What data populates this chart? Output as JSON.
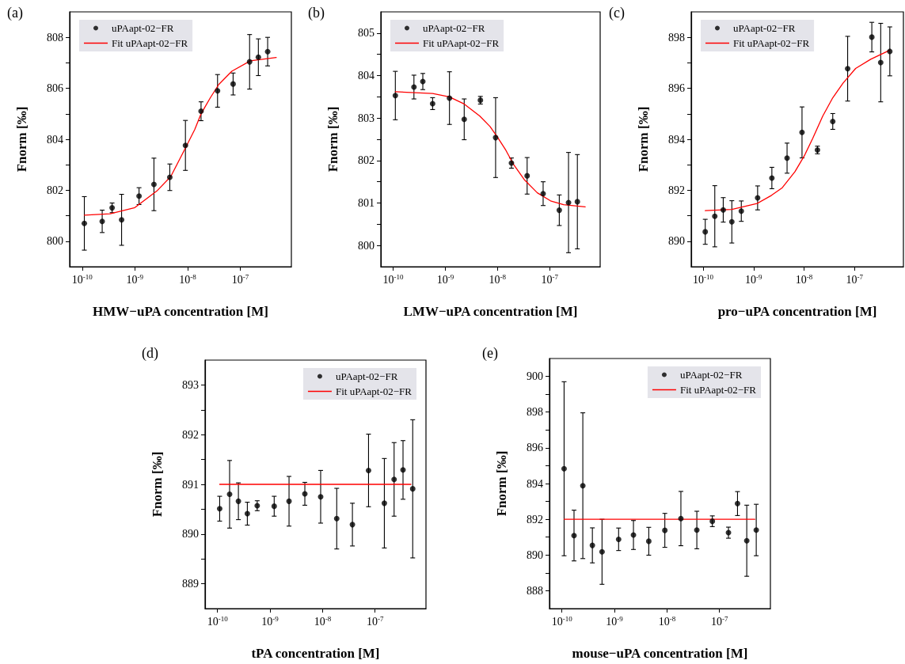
{
  "chart_data": [
    {
      "type": "scatter",
      "title": "(a)",
      "xlabel": "HMW−uPA concentration [M]",
      "ylabel": "Fnorm [‰]",
      "log": "x",
      "marker": "circle",
      "legend": "top left",
      "xlim": [
        5.8e-11,
        9.3e-07
      ],
      "xticks": [
        {
          "value": 1e-10,
          "label": "10$^{-10}$"
        },
        {
          "value": 1e-09,
          "label": "10$^{-9}$"
        },
        {
          "value": 1e-08,
          "label": "10$^{-8}$"
        },
        {
          "value": 1e-07,
          "label": "10$^{-7}$"
        }
      ],
      "ylim": [
        799,
        809
      ],
      "yticks": [
        800,
        {
          "value": 801,
          "label": null
        },
        802,
        {
          "value": 803,
          "label": null
        },
        804,
        {
          "value": 805,
          "label": null
        },
        806,
        {
          "value": 807,
          "label": null
        },
        808
      ],
      "series": [
        {
          "name": "uPAapt-02−FR",
          "color": "#000000",
          "x": [
            1.1e-10,
            2.4e-10,
            3.7e-10,
            5.6e-10,
            1.2e-09,
            2.3e-09,
            4.6e-09,
            9.1e-09,
            1.8e-08,
            3.7e-08,
            7.3e-08,
            1.5e-07,
            2.2e-07,
            3.3e-07
          ],
          "values": [
            800.7,
            800.78,
            801.31,
            800.84,
            801.77,
            802.23,
            802.51,
            803.76,
            805.1,
            805.9,
            806.17,
            807.04,
            807.22,
            807.44
          ],
          "errors": [
            1.05,
            0.44,
            0.19,
            1.0,
            0.33,
            1.03,
            0.52,
            0.98,
            0.37,
            0.64,
            0.43,
            1.07,
            0.72,
            0.56
          ]
        },
        {
          "name": "Fit uPAapt-02−FR",
          "type": "line",
          "marker": "none",
          "color": "#ff0000",
          "x": [
            1.1e-10,
            3.4e-10,
            1e-09,
            2.7e-09,
            4.8e-09,
            9.1e-09,
            1.37e-08,
            1.8e-08,
            2.7e-08,
            3.9e-08,
            6.9e-08,
            1.55e-07,
            4.8e-07
          ],
          "values": [
            801.02,
            801.08,
            801.32,
            802.0,
            802.54,
            803.66,
            804.39,
            805.0,
            805.63,
            806.15,
            806.67,
            807.08,
            807.21
          ]
        }
      ]
    },
    {
      "type": "scatter",
      "title": "(b)",
      "xlabel": "LMW−uPA concentration [M]",
      "ylabel": "Fnorm [‰]",
      "log": "x",
      "marker": "circle",
      "legend": "top left",
      "xlim": [
        5.8e-11,
        9.3e-07
      ],
      "xticks": [
        {
          "value": 1e-10,
          "label": "10$^{-10}$"
        },
        {
          "value": 1e-09,
          "label": "10$^{-9}$"
        },
        {
          "value": 1e-08,
          "label": "10$^{-8}$"
        },
        {
          "value": 1e-07,
          "label": "10$^{-7}$"
        }
      ],
      "ylim": [
        799.5,
        805.5
      ],
      "yticks": [
        800,
        {
          "value": 800.5,
          "label": null
        },
        801,
        {
          "value": 801.5,
          "label": null
        },
        802,
        {
          "value": 802.5,
          "label": null
        },
        803,
        {
          "value": 803.5,
          "label": null
        },
        804,
        {
          "value": 804.5,
          "label": null
        },
        805
      ],
      "series": [
        {
          "name": "uPAapt-02−FR",
          "color": "#000000",
          "x": [
            1.1e-10,
            2.5e-10,
            3.7e-10,
            5.7e-10,
            1.2e-09,
            2.3e-09,
            4.7e-09,
            9.2e-09,
            1.85e-08,
            3.7e-08,
            7.5e-08,
            1.53e-07,
            2.3e-07,
            3.4e-07
          ],
          "values": [
            803.53,
            803.73,
            803.86,
            803.34,
            803.47,
            802.97,
            803.42,
            802.54,
            801.94,
            801.64,
            801.22,
            800.83,
            801.01,
            801.03
          ],
          "errors": [
            0.57,
            0.28,
            0.19,
            0.14,
            0.62,
            0.48,
            0.09,
            0.94,
            0.12,
            0.43,
            0.28,
            0.36,
            1.18,
            1.11
          ]
        },
        {
          "name": "Fit uPAapt-02−FR",
          "type": "line",
          "marker": "none",
          "color": "#ff0000",
          "x": [
            1.1e-10,
            5.7e-10,
            1.19e-09,
            2.3e-09,
            4.55e-09,
            7.2e-09,
            1e-08,
            1.45e-08,
            2.05e-08,
            3.26e-08,
            5.8e-08,
            1.04e-07,
            1.85e-07,
            4.8e-07
          ],
          "values": [
            803.62,
            803.58,
            803.5,
            803.33,
            803.05,
            802.8,
            802.55,
            802.24,
            801.9,
            801.55,
            801.24,
            801.05,
            800.96,
            800.91
          ]
        }
      ]
    },
    {
      "type": "scatter",
      "title": "(c)",
      "xlabel": "pro−uPA concentration [M]",
      "ylabel": "Fnorm [‰]",
      "log": "x",
      "marker": "circle",
      "legend": "top left",
      "xlim": [
        5.8e-11,
        9.3e-07
      ],
      "xticks": [
        {
          "value": 1e-10,
          "label": "10$^{-10}$"
        },
        {
          "value": 1e-09,
          "label": "10$^{-9}$"
        },
        {
          "value": 1e-08,
          "label": "10$^{-8}$"
        },
        {
          "value": 1e-07,
          "label": "10$^{-7}$"
        }
      ],
      "ylim": [
        889,
        899
      ],
      "yticks": [
        890,
        {
          "value": 891,
          "label": null
        },
        892,
        {
          "value": 893,
          "label": null
        },
        894,
        {
          "value": 895,
          "label": null
        },
        896,
        {
          "value": 897,
          "label": null
        },
        898
      ],
      "series": [
        {
          "name": "uPAapt-02−FR",
          "color": "#000000",
          "x": [
            1.1e-10,
            1.7e-10,
            2.5e-10,
            3.7e-10,
            5.7e-10,
            1.2e-09,
            2.3e-09,
            4.6e-09,
            9.1e-09,
            1.84e-08,
            3.7e-08,
            7.3e-08,
            2.2e-07,
            3.3e-07,
            5e-07
          ],
          "values": [
            890.37,
            890.98,
            891.23,
            890.76,
            891.18,
            891.7,
            892.48,
            893.26,
            894.27,
            893.58,
            894.7,
            896.77,
            898.01,
            897.01,
            897.45
          ],
          "errors": [
            0.49,
            1.2,
            0.48,
            0.83,
            0.4,
            0.47,
            0.42,
            0.59,
            1.0,
            0.15,
            0.31,
            1.27,
            0.58,
            1.54,
            0.96
          ]
        },
        {
          "name": "Fit uPAapt-02−FR",
          "type": "line",
          "marker": "none",
          "color": "#ff0000",
          "x": [
            1.1e-10,
            3.7e-10,
            1.17e-09,
            2.26e-09,
            3.7e-09,
            6.6e-09,
            1.01e-08,
            1.48e-08,
            2.34e-08,
            3.7e-08,
            5.9e-08,
            1.05e-07,
            2.09e-07,
            5e-07
          ],
          "values": [
            891.2,
            891.25,
            891.48,
            891.8,
            892.1,
            892.73,
            893.35,
            894.03,
            894.91,
            895.63,
            896.2,
            896.78,
            897.14,
            897.5
          ]
        }
      ]
    },
    {
      "type": "scatter",
      "title": "(d)",
      "xlabel": "tPA concentration [M]",
      "ylabel": "Fnorm [‰]",
      "log": "x",
      "marker": "circle",
      "legend": "top right",
      "xlim": [
        5.8e-11,
        9.3e-07
      ],
      "xticks": [
        {
          "value": 1e-10,
          "label": "10$^{-10}$"
        },
        {
          "value": 1e-09,
          "label": "10$^{-9}$"
        },
        {
          "value": 1e-08,
          "label": "10$^{-8}$"
        },
        {
          "value": 1e-07,
          "label": "10$^{-7}$"
        }
      ],
      "ylim": [
        888.5,
        893.5
      ],
      "yticks": [
        889,
        {
          "value": 889.5,
          "label": null
        },
        890,
        {
          "value": 890.5,
          "label": null
        },
        891,
        {
          "value": 891.5,
          "label": null
        },
        892,
        {
          "value": 892.5,
          "label": null
        },
        893
      ],
      "series": [
        {
          "name": "uPAapt-02−FR",
          "color": "#000000",
          "x": [
            1.1e-10,
            1.7e-10,
            2.5e-10,
            3.7e-10,
            5.7e-10,
            1.2e-09,
            2.3e-09,
            4.6e-09,
            9.2e-09,
            1.86e-08,
            3.7e-08,
            7.5e-08,
            1.5e-07,
            2.3e-07,
            3.4e-07,
            5.2e-07
          ],
          "values": [
            890.51,
            890.8,
            890.66,
            890.41,
            890.57,
            890.56,
            890.66,
            890.81,
            890.75,
            890.31,
            890.19,
            891.28,
            890.62,
            891.1,
            891.29,
            890.91
          ],
          "errors": [
            0.25,
            0.68,
            0.37,
            0.23,
            0.1,
            0.2,
            0.5,
            0.23,
            0.53,
            0.61,
            0.43,
            0.73,
            0.9,
            0.74,
            0.59,
            1.39
          ]
        },
        {
          "name": "Fit uPAapt-02−FR",
          "type": "line",
          "marker": "none",
          "color": "#ff0000",
          "x": [
            1.1e-10,
            4.8e-07
          ],
          "values": [
            891,
            891
          ]
        }
      ]
    },
    {
      "type": "scatter",
      "title": "(e)",
      "xlabel": "mouse−uPA concentration [M]",
      "ylabel": "Fnorm [‰]",
      "log": "x",
      "marker": "circle",
      "legend": "top right",
      "xlim": [
        5.8e-11,
        9.3e-07
      ],
      "xticks": [
        {
          "value": 1e-10,
          "label": "10$^{-10}$"
        },
        {
          "value": 1e-09,
          "label": "10$^{-9}$"
        },
        {
          "value": 1e-08,
          "label": "10$^{-8}$"
        },
        {
          "value": 1e-07,
          "label": "10$^{-7}$"
        }
      ],
      "ylim": [
        887,
        901
      ],
      "yticks": [
        888,
        {
          "value": 889,
          "label": null
        },
        890,
        {
          "value": 891,
          "label": null
        },
        892,
        {
          "value": 893,
          "label": null
        },
        894,
        {
          "value": 895,
          "label": null
        },
        896,
        {
          "value": 897,
          "label": null
        },
        898,
        {
          "value": 899,
          "label": null
        },
        900
      ],
      "series": [
        {
          "name": "uPAapt-02−FR",
          "color": "#000000",
          "x": [
            1.1e-10,
            1.7e-10,
            2.5e-10,
            3.8e-10,
            5.8e-10,
            1.2e-09,
            2.3e-09,
            4.5e-09,
            9.1e-09,
            1.84e-08,
            3.7e-08,
            7.3e-08,
            1.48e-07,
            2.2e-07,
            3.3e-07,
            5e-07
          ],
          "values": [
            894.83,
            891.09,
            893.88,
            890.54,
            890.18,
            890.88,
            891.12,
            890.77,
            891.38,
            892.04,
            891.4,
            891.89,
            891.25,
            892.88,
            890.8,
            891.4
          ],
          "errors": [
            4.87,
            1.42,
            4.08,
            0.98,
            1.82,
            0.63,
            0.81,
            0.78,
            0.95,
            1.52,
            1.05,
            0.3,
            0.31,
            0.67,
            1.99,
            1.44
          ]
        },
        {
          "name": "Fit uPAapt-02−FR",
          "type": "line",
          "marker": "none",
          "color": "#ff0000",
          "x": [
            1.1e-10,
            4.7e-07
          ],
          "values": [
            892,
            892
          ]
        }
      ]
    }
  ]
}
